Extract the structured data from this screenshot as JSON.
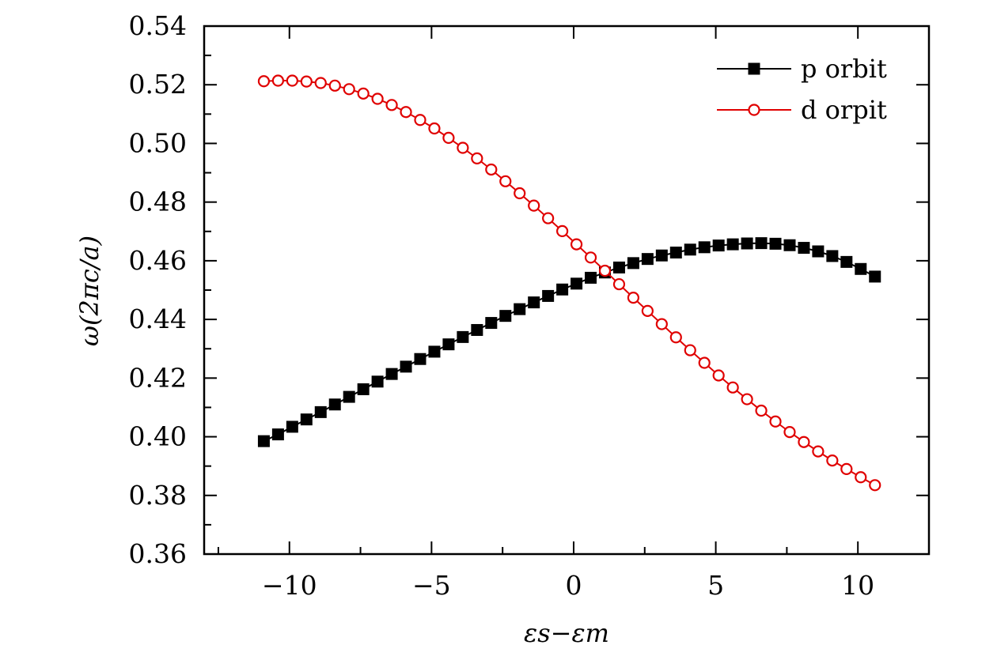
{
  "chart_data": {
    "type": "scatter",
    "xlabel": "εs−εm",
    "ylabel": "ω(2πc/a)",
    "xlim": [
      -13,
      12.5
    ],
    "ylim": [
      0.36,
      0.54
    ],
    "xticks": [
      -10,
      -5,
      0,
      5,
      10
    ],
    "xtick_labels": [
      "−10",
      "−5",
      "0",
      "5",
      "10"
    ],
    "yticks": [
      0.36,
      0.38,
      0.4,
      0.42,
      0.44,
      0.46,
      0.48,
      0.5,
      0.52,
      0.54
    ],
    "ytick_labels": [
      "0.36",
      "0.38",
      "0.40",
      "0.42",
      "0.44",
      "0.46",
      "0.48",
      "0.50",
      "0.52",
      "0.54"
    ],
    "grid": false,
    "legend_position": "top-right",
    "series": [
      {
        "name": "p orbit",
        "color": "#000000",
        "marker": "filled-square",
        "x": [
          -10.9,
          -10.4,
          -9.9,
          -9.4,
          -8.9,
          -8.4,
          -7.9,
          -7.4,
          -6.9,
          -6.4,
          -5.9,
          -5.4,
          -4.9,
          -4.4,
          -3.9,
          -3.4,
          -2.9,
          -2.4,
          -1.9,
          -1.4,
          -0.9,
          -0.4,
          0.1,
          0.6,
          1.1,
          1.6,
          2.1,
          2.6,
          3.1,
          3.6,
          4.1,
          4.6,
          5.1,
          5.6,
          6.1,
          6.6,
          7.1,
          7.6,
          8.1,
          8.6,
          9.1,
          9.6,
          10.1,
          10.6
        ],
        "y": [
          0.3985,
          0.4008,
          0.4034,
          0.4059,
          0.4084,
          0.411,
          0.4136,
          0.4162,
          0.4188,
          0.4214,
          0.4239,
          0.4265,
          0.429,
          0.4315,
          0.434,
          0.4364,
          0.4388,
          0.4412,
          0.4435,
          0.4458,
          0.448,
          0.4502,
          0.4522,
          0.4542,
          0.456,
          0.4577,
          0.4592,
          0.4606,
          0.4618,
          0.4628,
          0.4638,
          0.4646,
          0.4652,
          0.4656,
          0.4659,
          0.466,
          0.4658,
          0.4653,
          0.4644,
          0.4632,
          0.4616,
          0.4596,
          0.4572,
          0.4546
        ]
      },
      {
        "name": "d orpit",
        "color": "#e00000",
        "marker": "open-circle",
        "x": [
          -10.9,
          -10.4,
          -9.9,
          -9.4,
          -8.9,
          -8.4,
          -7.9,
          -7.4,
          -6.9,
          -6.4,
          -5.9,
          -5.4,
          -4.9,
          -4.4,
          -3.9,
          -3.4,
          -2.9,
          -2.4,
          -1.9,
          -1.4,
          -0.9,
          -0.4,
          0.1,
          0.6,
          1.1,
          1.6,
          2.1,
          2.6,
          3.1,
          3.6,
          4.1,
          4.6,
          5.1,
          5.6,
          6.1,
          6.6,
          7.1,
          7.6,
          8.1,
          8.6,
          9.1,
          9.6,
          10.1,
          10.6
        ],
        "y": [
          0.5212,
          0.5214,
          0.5214,
          0.5211,
          0.5206,
          0.5197,
          0.5185,
          0.517,
          0.5152,
          0.5131,
          0.5107,
          0.508,
          0.5051,
          0.5019,
          0.4985,
          0.4949,
          0.4911,
          0.4871,
          0.483,
          0.4788,
          0.4745,
          0.4701,
          0.4656,
          0.4611,
          0.4566,
          0.452,
          0.4474,
          0.4429,
          0.4384,
          0.4339,
          0.4295,
          0.4252,
          0.4209,
          0.4168,
          0.4128,
          0.4089,
          0.4052,
          0.4016,
          0.3982,
          0.395,
          0.3919,
          0.389,
          0.3862,
          0.3835
        ]
      }
    ]
  }
}
